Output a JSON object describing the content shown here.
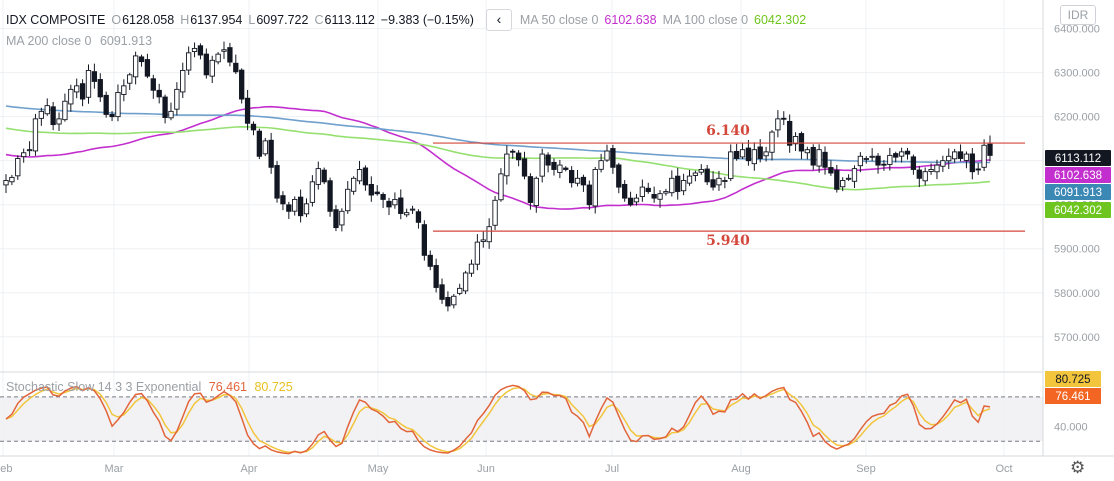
{
  "header": {
    "symbol": "IDX COMPOSITE",
    "o_label": "O",
    "o_value": "6128.058",
    "h_label": "H",
    "h_value": "6137.954",
    "l_label": "L",
    "l_value": "6097.722",
    "c_label": "C",
    "c_value": "6113.112",
    "change": "−9.383 (−0.15%)",
    "back_glyph": "‹",
    "ma50_label": "MA 50 close 0",
    "ma50_value": "6102.638",
    "ma100_label": "MA 100 close 0",
    "ma100_value": "6042.302",
    "ma200_label": "MA 200 close 0",
    "ma200_value": "6091.913"
  },
  "currency_button": "IDR",
  "settings_icon": "gear-icon",
  "stochastic": {
    "label": "Stochastic Slow 14 3 3 Exponential",
    "k_value": "76.461",
    "d_value": "80.725",
    "levels": [
      80,
      20
    ],
    "tick": "40.000",
    "colors": {
      "k": "#e2643a",
      "d": "#f2c53d"
    }
  },
  "chart_data": {
    "type": "candlestick",
    "y_axis": {
      "min": 5620,
      "max": 6465,
      "ticks": [
        "6400.000",
        "6300.000",
        "6200.000",
        "6100.000",
        "6000.000",
        "5900.000",
        "5800.000",
        "5700.000"
      ]
    },
    "x_axis": {
      "labels": [
        "Feb",
        "Mar",
        "Apr",
        "May",
        "Jun",
        "Jul",
        "Aug",
        "Sep",
        "Oct"
      ]
    },
    "price_badges": [
      {
        "value": "6113.112",
        "color": "#131722"
      },
      {
        "value": "6102.638",
        "color": "#c32fce"
      },
      {
        "value": "6091.913",
        "color": "#3c88b5"
      },
      {
        "value": "6042.302",
        "color": "#6fc51f"
      }
    ],
    "annotations": [
      {
        "text": "6.140",
        "level": 6140,
        "color": "#d4473b"
      },
      {
        "text": "5.940",
        "level": 5940,
        "color": "#d4473b"
      }
    ],
    "ma_colors": {
      "ma50": "#c32fce",
      "ma100": "#95e070",
      "ma200": "#6fa0cd"
    },
    "close": [
      6055,
      6062,
      6105,
      6118,
      6125,
      6195,
      6212,
      6225,
      6182,
      6195,
      6235,
      6262,
      6270,
      6240,
      6305,
      6280,
      6245,
      6205,
      6200,
      6255,
      6270,
      6295,
      6338,
      6325,
      6292,
      6260,
      6245,
      6198,
      6212,
      6262,
      6305,
      6345,
      6355,
      6340,
      6295,
      6328,
      6342,
      6352,
      6324,
      6302,
      6240,
      6185,
      6170,
      6110,
      6145,
      6085,
      6015,
      6002,
      5985,
      6012,
      5975,
      6002,
      6052,
      6082,
      6052,
      5985,
      5948,
      5985,
      6035,
      6060,
      6080,
      6045,
      6022,
      6025,
      6012,
      5995,
      6012,
      5980,
      5982,
      5990,
      5960,
      5885,
      5860,
      5812,
      5785,
      5770,
      5792,
      5810,
      5845,
      5865,
      5915,
      5920,
      5950,
      6010,
      6070,
      6115,
      6120,
      6102,
      6065,
      6005,
      6060,
      6115,
      6090,
      6080,
      6090,
      6080,
      6050,
      6060,
      6045,
      6000,
      6080,
      6100,
      6122,
      6085,
      6040,
      6015,
      6000,
      6015,
      6040,
      6030,
      6015,
      6025,
      6030,
      6060,
      6030,
      6055,
      6065,
      6072,
      6080,
      6052,
      6040,
      6060,
      6055,
      6120,
      6105,
      6125,
      6100,
      6125,
      6105,
      6120,
      6165,
      6195,
      6195,
      6135,
      6155,
      6122,
      6125,
      6090,
      6125,
      6085,
      6072,
      6035,
      6055,
      6060,
      6082,
      6110,
      6105,
      6110,
      6090,
      6090,
      6112,
      6108,
      6120,
      6115,
      6080,
      6060,
      6075,
      6080,
      6090,
      6100,
      6110,
      6120,
      6105,
      6115,
      6075,
      6080,
      6135,
      6112
    ]
  }
}
